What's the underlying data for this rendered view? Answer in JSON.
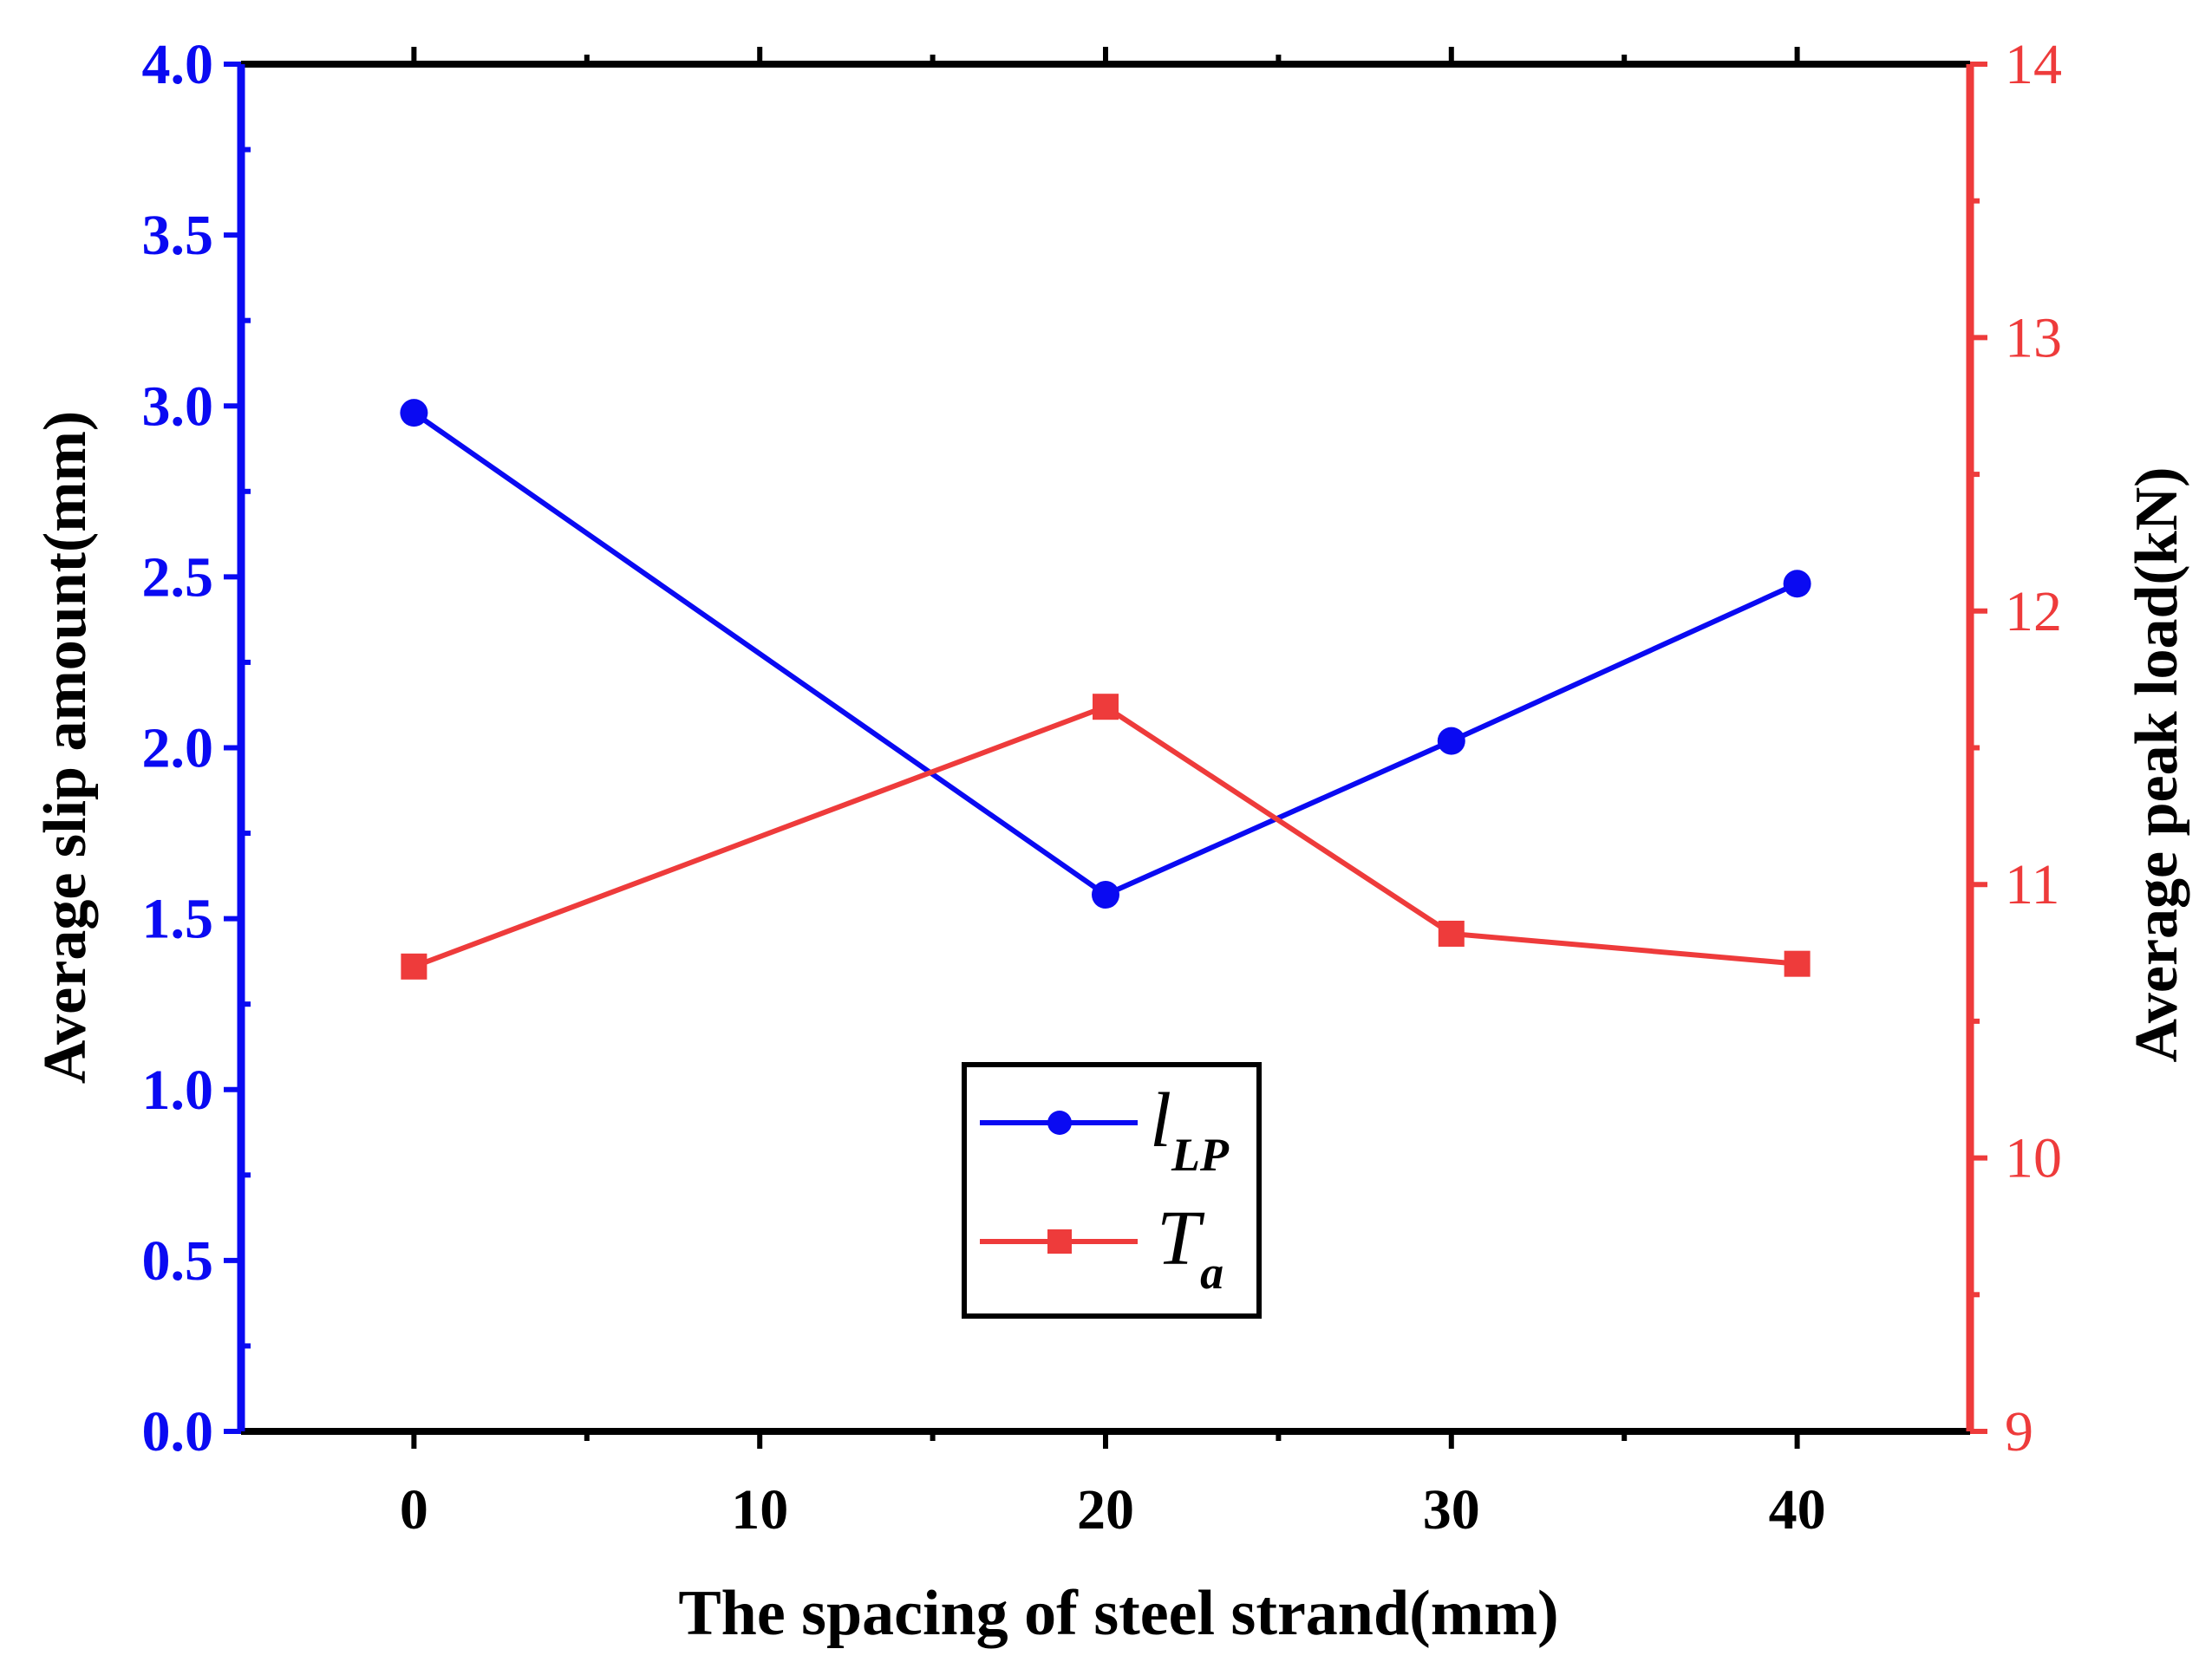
{
  "chart_data": {
    "type": "line",
    "xlabel": "The spacing of steel strand(mm)",
    "ylabel_left": "Average slip amount(mm)",
    "ylabel_right": "Average peak load(kN)",
    "xlim": [
      -5,
      45
    ],
    "ylim_left": [
      0,
      4
    ],
    "ylim_right": [
      9,
      14
    ],
    "x_ticks": [
      "0",
      "10",
      "20",
      "30",
      "40"
    ],
    "y_left_ticks": [
      "0.0",
      "0.5",
      "1.0",
      "1.5",
      "2.0",
      "2.5",
      "3.0",
      "3.5",
      "4.0"
    ],
    "y_right_ticks": [
      "9",
      "10",
      "11",
      "12",
      "13",
      "14"
    ],
    "grid": false,
    "legend_position": "bottom-center",
    "colors": {
      "left_axis": "#0a0af2",
      "right_axis": "#ee3b3b",
      "frame": "#000000"
    },
    "series": [
      {
        "name": "l",
        "subscript": "LP",
        "axis": "left",
        "marker": "circle",
        "color": "#0a0af2",
        "x": [
          0,
          20,
          30,
          40
        ],
        "values": [
          2.98,
          1.57,
          2.02,
          2.48
        ]
      },
      {
        "name": "T",
        "subscript": "a",
        "axis": "right",
        "marker": "square",
        "color": "#ee3b3b",
        "x": [
          0,
          20,
          30,
          40
        ],
        "values": [
          10.7,
          11.65,
          10.82,
          10.71
        ]
      }
    ]
  }
}
